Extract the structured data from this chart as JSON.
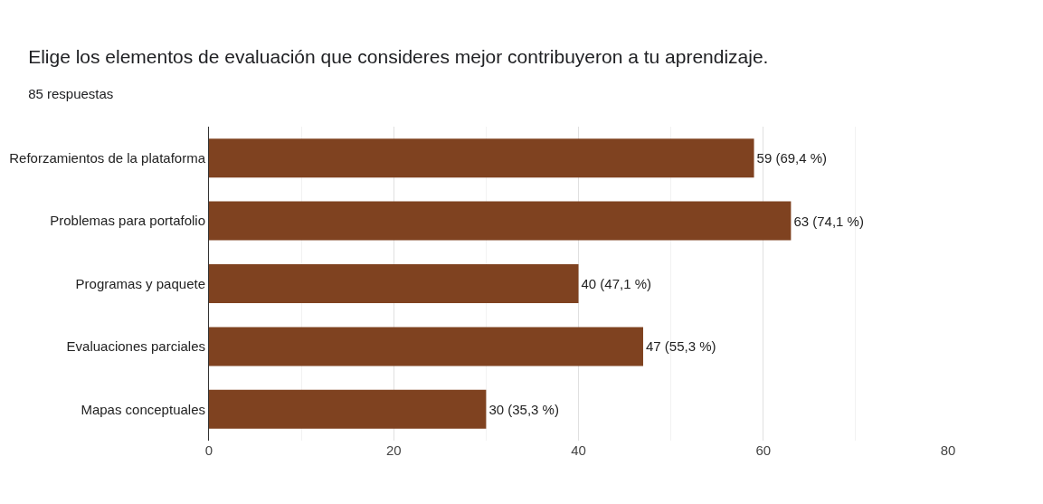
{
  "chart_data": {
    "type": "bar",
    "orientation": "horizontal",
    "title": "Elige los elementos de evaluación que consideres mejor contribuyeron a tu aprendizaje.",
    "subtitle": "85 respuestas",
    "categories": [
      "Reforzamientos de la plataforma",
      "Problemas para portafolio",
      "Programas y paquete",
      "Evaluaciones parciales",
      "Mapas conceptuales"
    ],
    "values": [
      59,
      63,
      40,
      47,
      30
    ],
    "value_labels": [
      "59 (69,4 %)",
      "63 (74,1 %)",
      "40 (47,1 %)",
      "47 (55,3 %)",
      "30 (35,3 %)"
    ],
    "color": "#7f4220",
    "xlim": [
      0,
      80
    ],
    "xticks": [
      0,
      20,
      40,
      60,
      80
    ],
    "grid": "x"
  }
}
